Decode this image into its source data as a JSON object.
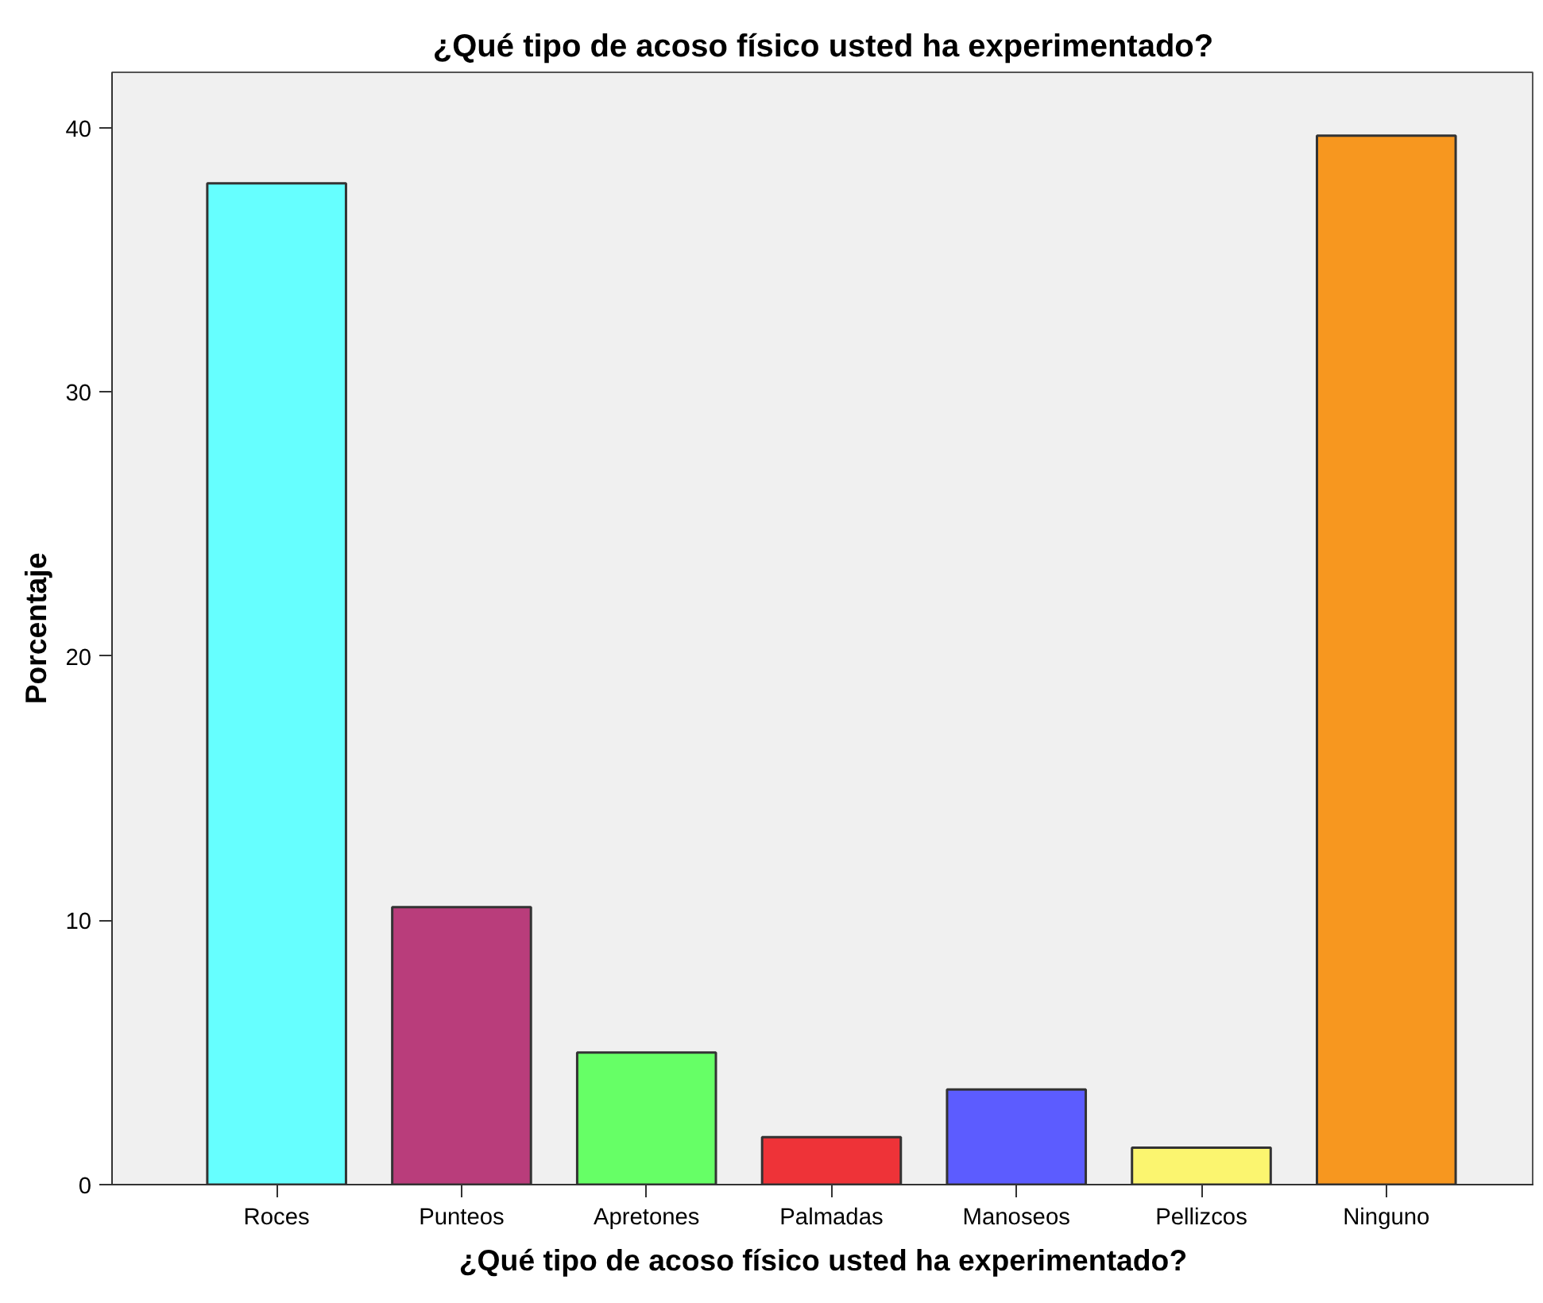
{
  "chart_data": {
    "type": "bar",
    "title": "¿Qué tipo de acoso físico usted ha experimentado?",
    "xlabel": "¿Qué tipo de acoso físico usted ha experimentado?",
    "ylabel": "Porcentaje",
    "categories": [
      "Roces",
      "Punteos",
      "Apretones",
      "Palmadas",
      "Manoseos",
      "Pellizcos",
      "Ninguno"
    ],
    "values": [
      37.9,
      10.5,
      5.0,
      1.8,
      3.6,
      1.4,
      39.7
    ],
    "colors": [
      "#66ffff",
      "#b93d7b",
      "#66ff66",
      "#ee3338",
      "#5c5cff",
      "#fbf56f",
      "#f7971f"
    ],
    "ylim": [
      0,
      42.1
    ],
    "yticks": [
      0,
      10,
      20,
      30,
      40
    ],
    "grid": false
  }
}
